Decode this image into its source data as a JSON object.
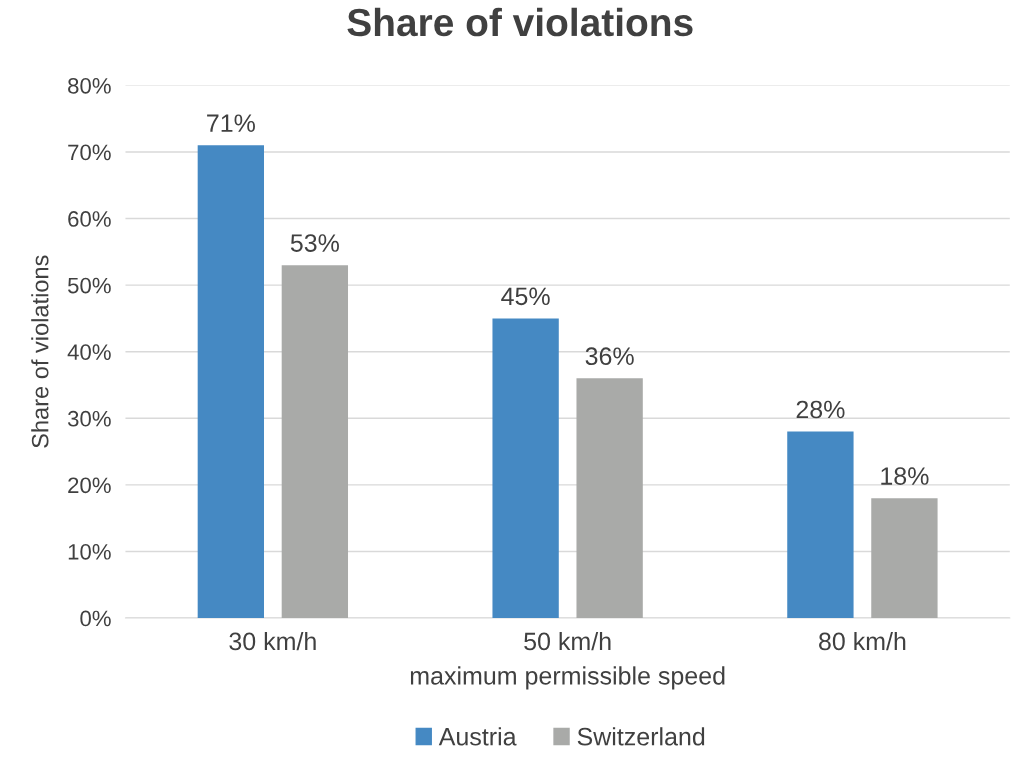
{
  "chart_data": {
    "type": "bar",
    "title": "Share of violations",
    "xlabel": "maximum permissible speed",
    "ylabel": "Share of violations",
    "categories": [
      "30 km/h",
      "50 km/h",
      "80 km/h"
    ],
    "series": [
      {
        "name": "Austria",
        "color": "#4589c3",
        "values": [
          71,
          45,
          28
        ],
        "value_labels": [
          "71%",
          "45%",
          "28%"
        ]
      },
      {
        "name": "Switzerland",
        "color": "#a9aaa8",
        "values": [
          53,
          36,
          18
        ],
        "value_labels": [
          "53%",
          "36%",
          "18%"
        ]
      }
    ],
    "ylim": [
      0,
      80
    ],
    "yticks": [
      {
        "value": 0,
        "label": "0%"
      },
      {
        "value": 10,
        "label": "10%"
      },
      {
        "value": 20,
        "label": "20%"
      },
      {
        "value": 30,
        "label": "30%"
      },
      {
        "value": 40,
        "label": "40%"
      },
      {
        "value": 50,
        "label": "50%"
      },
      {
        "value": 60,
        "label": "60%"
      },
      {
        "value": 70,
        "label": "70%"
      },
      {
        "value": 80,
        "label": "80%"
      }
    ],
    "grid": "y",
    "legend": "bottom"
  }
}
